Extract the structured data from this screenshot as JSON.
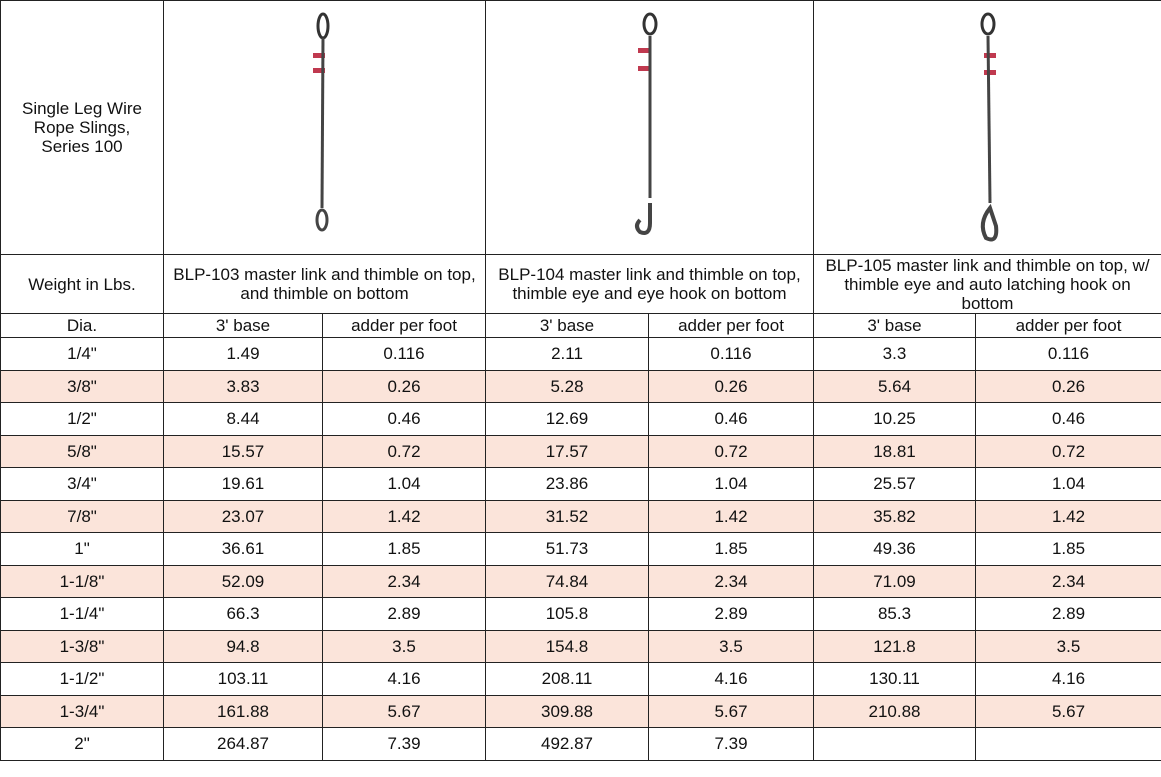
{
  "header": {
    "title": "Single Leg Wire Rope Slings, Series 100",
    "weight_label": "Weight in Lbs."
  },
  "products": [
    {
      "name": "BLP-103 master link and thimble on top, and thimble on bottom"
    },
    {
      "name": "BLP-104 master link and thimble on top, thimble eye and eye hook on bottom"
    },
    {
      "name": "BLP-105 master link and thimble on top, w/ thimble eye and auto latching hook on bottom"
    }
  ],
  "table": {
    "columns": [
      "Dia.",
      "3' base",
      "adder per foot",
      "3' base",
      "adder per foot",
      "3' base",
      "adder per foot"
    ],
    "rows": [
      [
        "1/4\"",
        "1.49",
        "0.116",
        "2.11",
        "0.116",
        "3.3",
        "0.116"
      ],
      [
        "3/8\"",
        "3.83",
        "0.26",
        "5.28",
        "0.26",
        "5.64",
        "0.26"
      ],
      [
        "1/2\"",
        "8.44",
        "0.46",
        "12.69",
        "0.46",
        "10.25",
        "0.46"
      ],
      [
        "5/8\"",
        "15.57",
        "0.72",
        "17.57",
        "0.72",
        "18.81",
        "0.72"
      ],
      [
        "3/4\"",
        "19.61",
        "1.04",
        "23.86",
        "1.04",
        "25.57",
        "1.04"
      ],
      [
        "7/8\"",
        "23.07",
        "1.42",
        "31.52",
        "1.42",
        "35.82",
        "1.42"
      ],
      [
        "1\"",
        "36.61",
        "1.85",
        "51.73",
        "1.85",
        "49.36",
        "1.85"
      ],
      [
        "1-1/8\"",
        "52.09",
        "2.34",
        "74.84",
        "2.34",
        "71.09",
        "2.34"
      ],
      [
        "1-1/4\"",
        "66.3",
        "2.89",
        "105.8",
        "2.89",
        "85.3",
        "2.89"
      ],
      [
        "1-3/8\"",
        "94.8",
        "3.5",
        "154.8",
        "3.5",
        "121.8",
        "3.5"
      ],
      [
        "1-1/2\"",
        "103.11",
        "4.16",
        "208.11",
        "4.16",
        "130.11",
        "4.16"
      ],
      [
        "1-3/4\"",
        "161.88",
        "5.67",
        "309.88",
        "5.67",
        "210.88",
        "5.67"
      ],
      [
        "2\"",
        "264.87",
        "7.39",
        "492.87",
        "7.39"
      ]
    ]
  }
}
